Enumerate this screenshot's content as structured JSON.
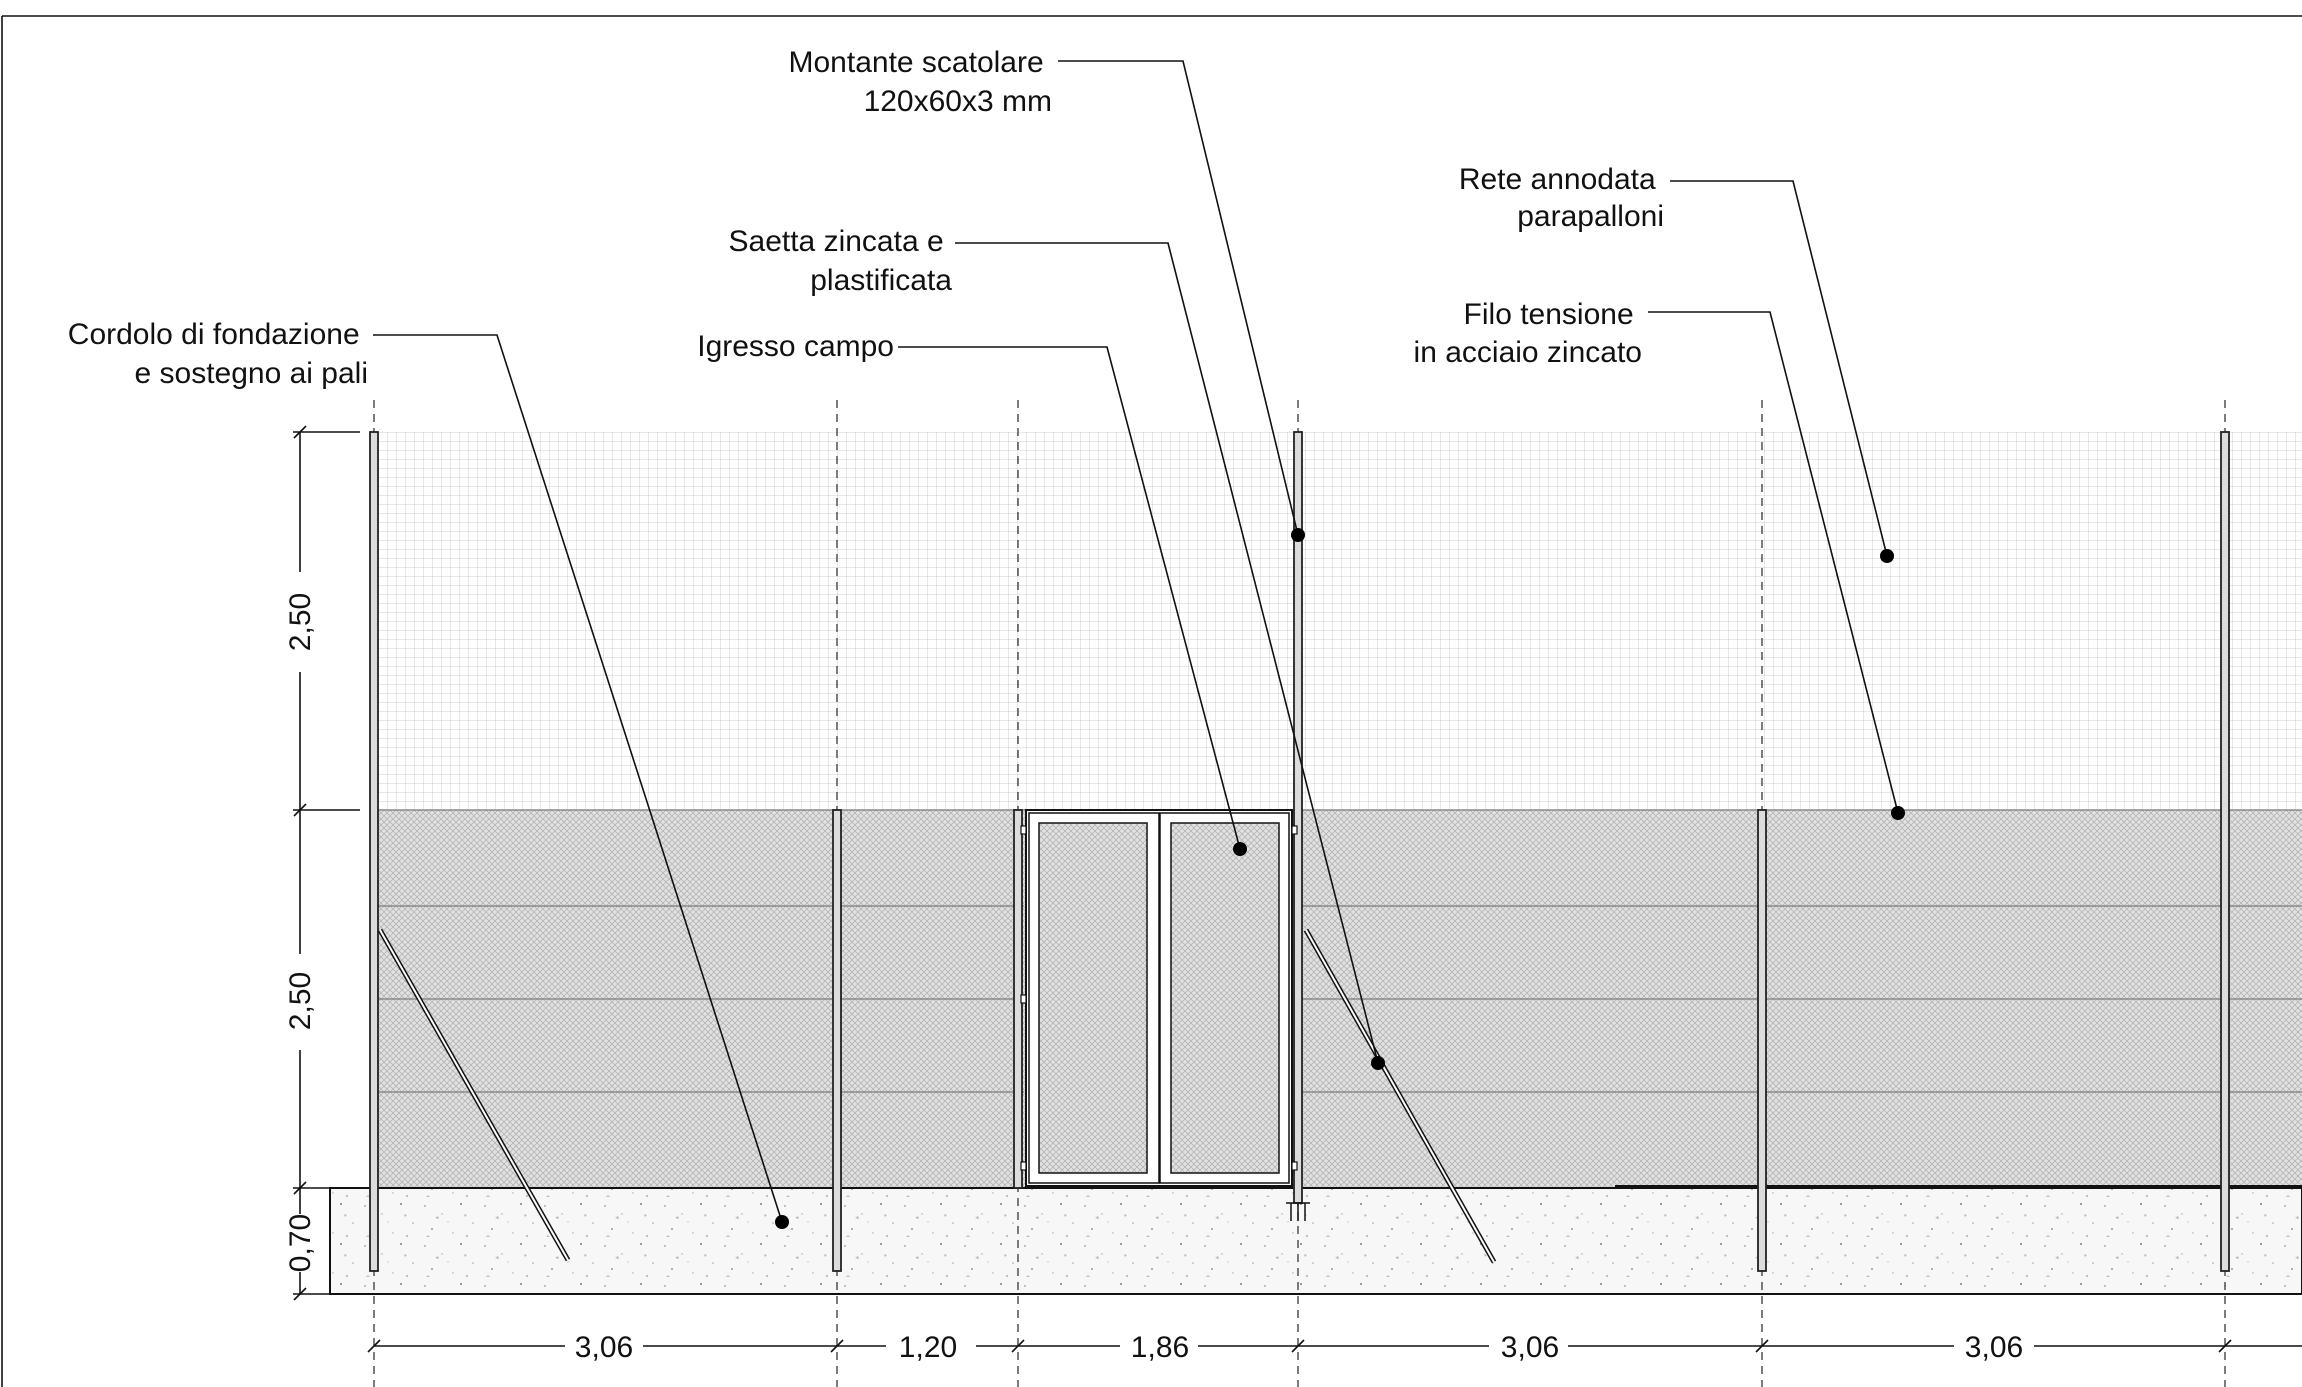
{
  "annotations": [
    {
      "id": "montante",
      "lines": [
        "Montante scatolare",
        "120x60x3 mm"
      ]
    },
    {
      "id": "rete",
      "lines": [
        "Rete annodata",
        "parapalloni"
      ]
    },
    {
      "id": "saetta",
      "lines": [
        "Saetta zincata e",
        "plastificata"
      ]
    },
    {
      "id": "filo",
      "lines": [
        "Filo tensione",
        "in acciaio zincato"
      ]
    },
    {
      "id": "cordolo",
      "lines": [
        "Cordolo di fondazione",
        "e sostegno ai pali"
      ]
    },
    {
      "id": "ingresso",
      "lines": [
        "Igresso campo"
      ]
    }
  ],
  "dimensions": {
    "horizontal": [
      "3,06",
      "1,20",
      "1,86",
      "3,06",
      "3,06"
    ],
    "vertical": [
      "2,50",
      "2,50",
      "0,70"
    ]
  },
  "colors": {
    "line": "#111111",
    "upper_net": "#d9d9d9",
    "lower_net": "#bdbdbd",
    "concrete": "#f6f6f6"
  }
}
